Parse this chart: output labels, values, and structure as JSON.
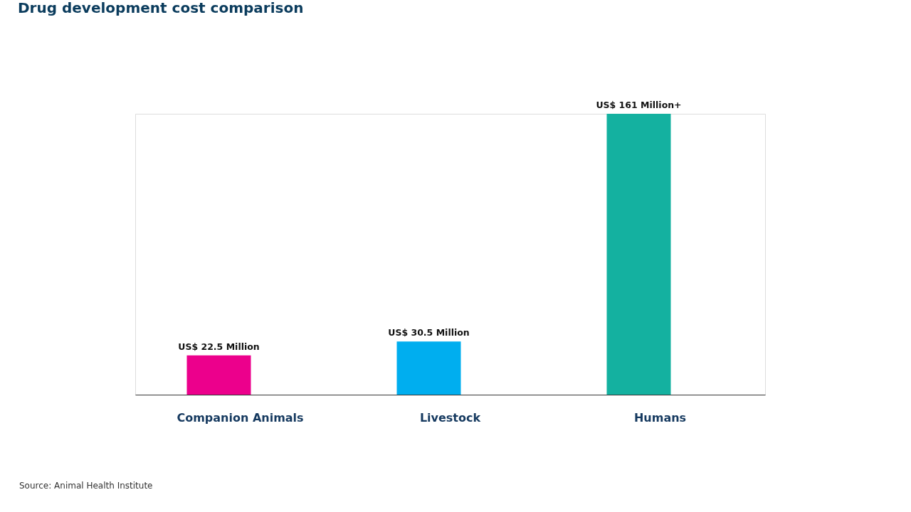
{
  "chart_data": {
    "type": "bar",
    "title": "Drug development cost comparison",
    "categories": [
      "Companion Animals",
      "Livestock",
      "Humans"
    ],
    "values": [
      22.5,
      30.5,
      161
    ],
    "colors": [
      "#ec008c",
      "#00aeef",
      "#14b1a0"
    ],
    "value_labels": [
      "US$ 22.5 Million",
      "US$ 30.5 Million",
      "US$ 161 Million+"
    ],
    "annotations": [
      "Source: Animal Health Institute"
    ]
  }
}
